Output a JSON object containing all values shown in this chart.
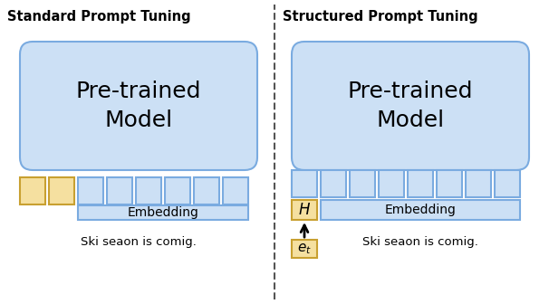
{
  "title_left": "Standard Prompt Tuning",
  "title_right": "Structured Prompt Tuning",
  "model_text": "Pre-trained\nModel",
  "embedding_text": "Embedding",
  "caption_text": "Ski seaon is comig.",
  "H_text": "$H$",
  "et_text": "$e_t$",
  "color_blue_fill": "#cce0f5",
  "color_blue_edge": "#7aabe0",
  "color_gold_fill": "#f5e0a0",
  "color_gold_edge": "#c8a030",
  "color_white": "#ffffff",
  "color_black": "#000000",
  "divider_color": "#555555"
}
